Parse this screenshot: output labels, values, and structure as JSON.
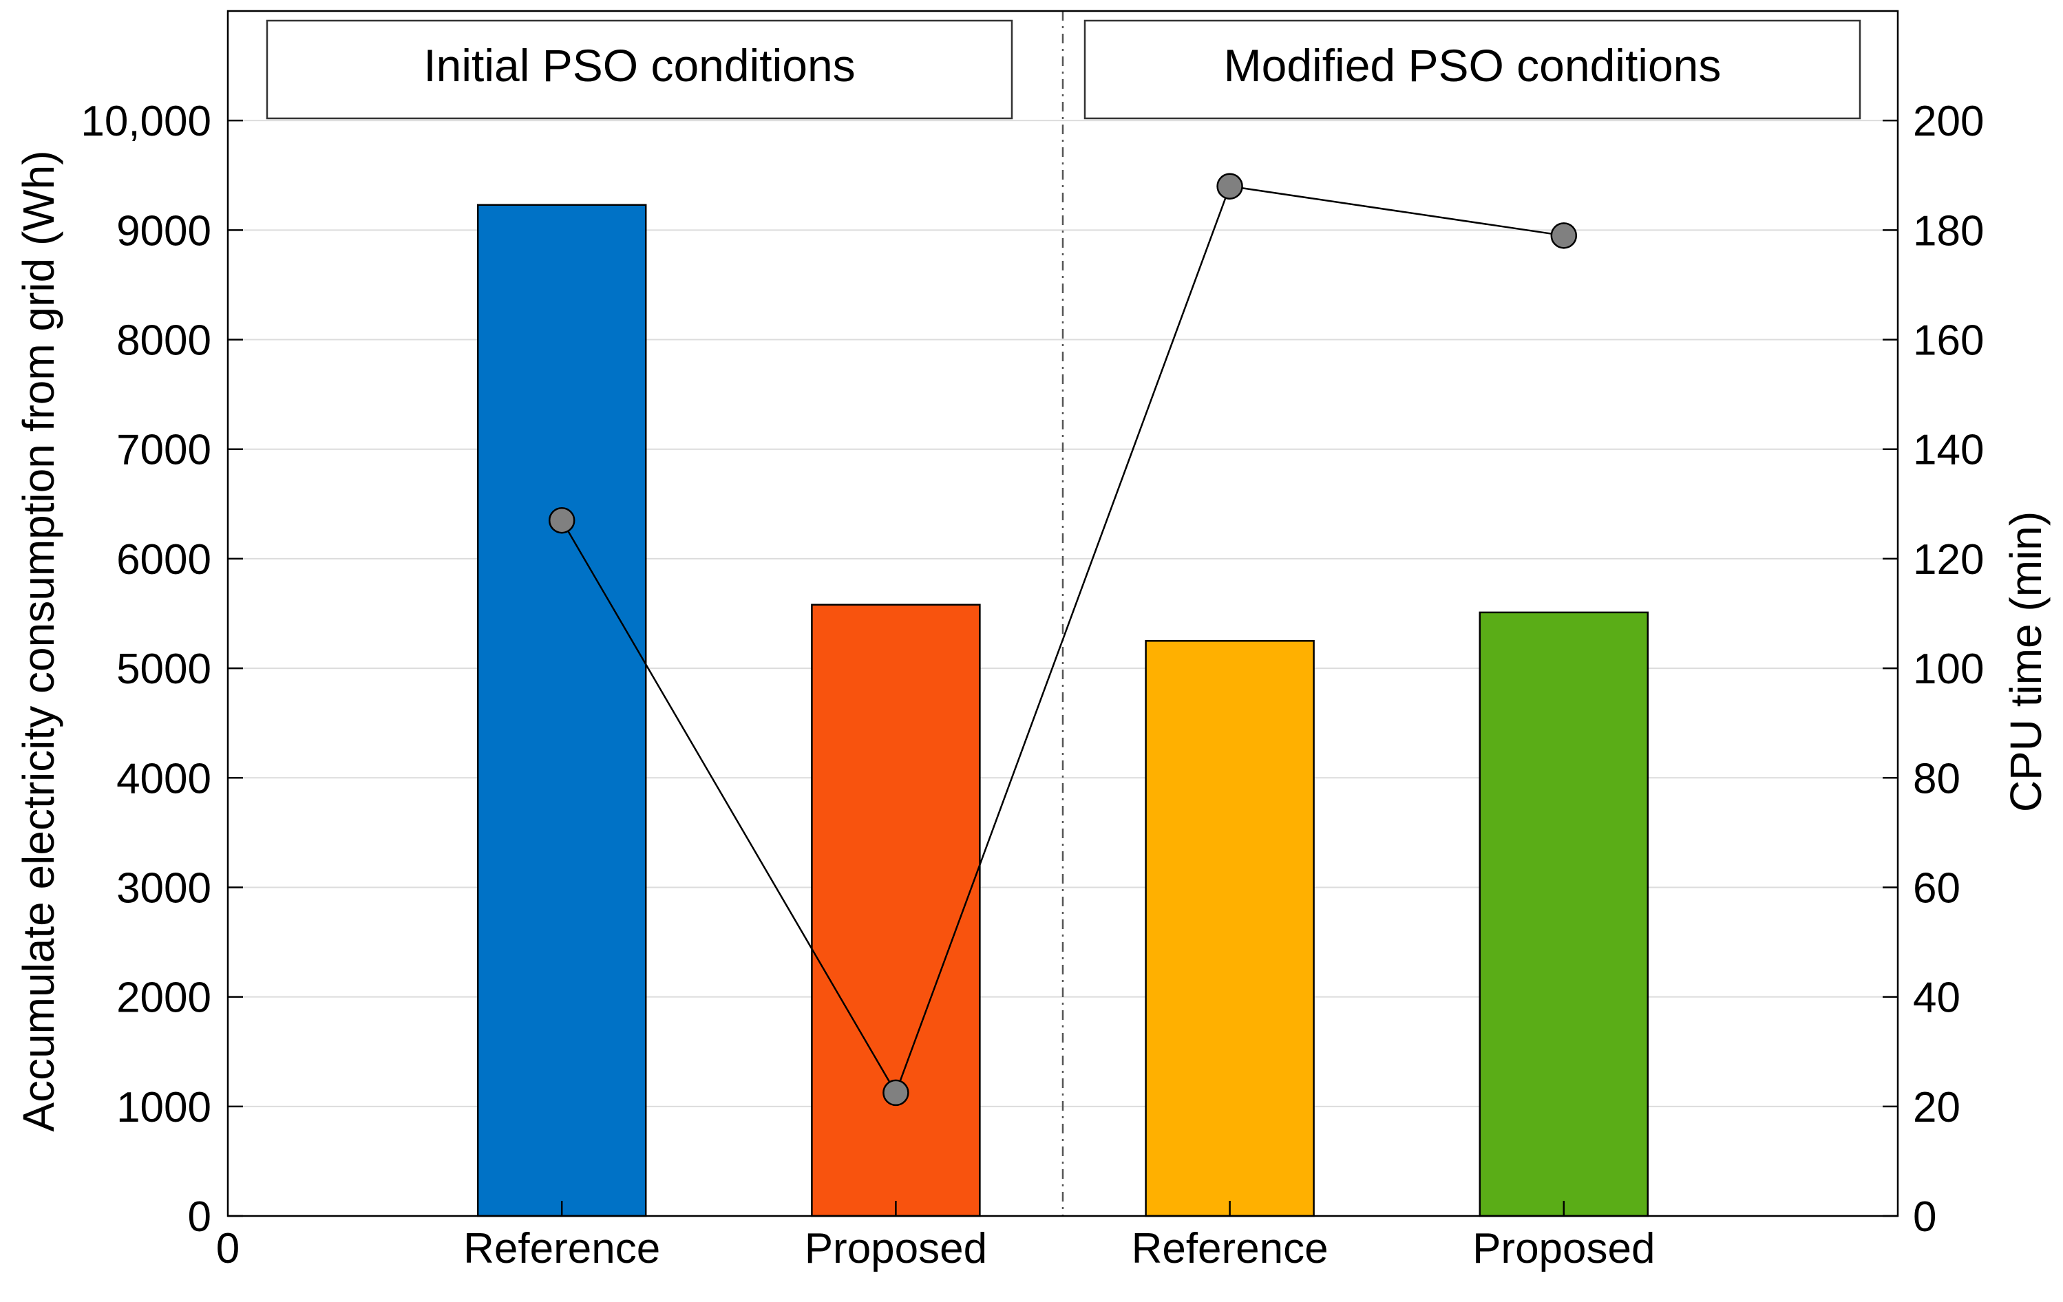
{
  "chart_data": {
    "type": "bar",
    "categories": [
      "Reference",
      "Proposed",
      "Reference",
      "Proposed"
    ],
    "x_positions": [
      1,
      2,
      3,
      4
    ],
    "xlim": [
      0,
      5
    ],
    "x_extra_tick_label": "0",
    "groups": [
      {
        "title": "Initial PSO conditions",
        "categories": [
          0,
          1
        ]
      },
      {
        "title": "Modified PSO conditions",
        "categories": [
          2,
          3
        ]
      }
    ],
    "group_divider_x": 2.5,
    "ylabel": "Accumulate electricity consumption from grid (Wh)",
    "ylim": [
      0,
      11000
    ],
    "yticks": [
      0,
      1000,
      2000,
      3000,
      4000,
      5000,
      6000,
      7000,
      8000,
      9000,
      10000
    ],
    "ytick_labels": [
      "0",
      "1000",
      "2000",
      "3000",
      "4000",
      "5000",
      "6000",
      "7000",
      "8000",
      "9000",
      "10,000"
    ],
    "y2label": "CPU time (min)",
    "y2lim": [
      0,
      220
    ],
    "y2ticks": [
      0,
      20,
      40,
      60,
      80,
      100,
      120,
      140,
      160,
      180,
      200
    ],
    "y2tick_labels": [
      "0",
      "20",
      "40",
      "60",
      "80",
      "100",
      "120",
      "140",
      "160",
      "180",
      "200"
    ],
    "grid": true,
    "series": [
      {
        "name": "Accumulate electricity consumption from grid (Wh)",
        "type": "bar",
        "axis": "left",
        "values": [
          9230,
          5580,
          5250,
          5510
        ],
        "colors": [
          "#0072C6",
          "#F8530E",
          "#FFB000",
          "#5AAD17"
        ]
      },
      {
        "name": "CPU time (min)",
        "type": "line",
        "axis": "right",
        "values": [
          127,
          22.5,
          188,
          179
        ],
        "color": "#000000",
        "marker_color": "#808080"
      }
    ]
  }
}
